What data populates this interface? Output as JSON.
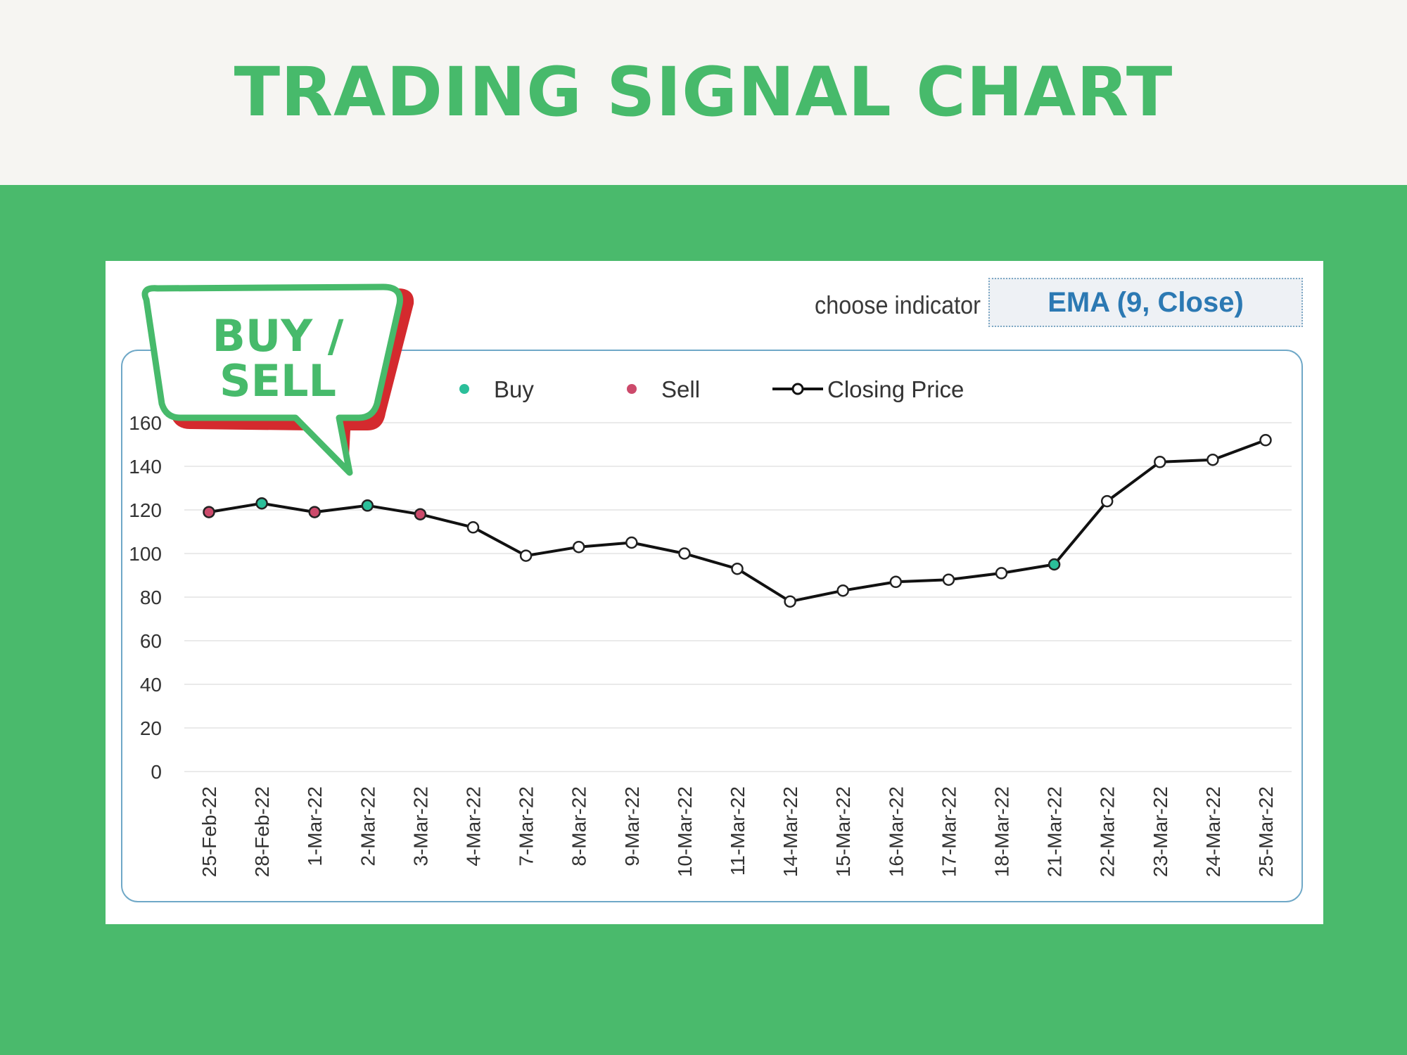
{
  "title": "TRADING SIGNAL CHART",
  "indicator": {
    "label": "choose indicator",
    "selected": "EMA (9, Close)"
  },
  "callout": {
    "line1": "BUY /",
    "line2": "SELL"
  },
  "colors": {
    "background": "#4aba6c",
    "title": "#47ba6b",
    "buy": "#2bbf9a",
    "sell": "#cc4a6b",
    "line": "#111111",
    "callout_shadow": "#d42a2e"
  },
  "chart_data": {
    "type": "line",
    "categories": [
      "25-Feb-22",
      "28-Feb-22",
      "1-Mar-22",
      "2-Mar-22",
      "3-Mar-22",
      "4-Mar-22",
      "7-Mar-22",
      "8-Mar-22",
      "9-Mar-22",
      "10-Mar-22",
      "11-Mar-22",
      "14-Mar-22",
      "15-Mar-22",
      "16-Mar-22",
      "17-Mar-22",
      "18-Mar-22",
      "21-Mar-22",
      "22-Mar-22",
      "23-Mar-22",
      "24-Mar-22",
      "25-Mar-22"
    ],
    "series": [
      {
        "name": "Closing Price",
        "values": [
          119,
          123,
          119,
          122,
          118,
          112,
          99,
          103,
          105,
          100,
          93,
          78,
          83,
          87,
          88,
          91,
          95,
          124,
          142,
          143,
          152
        ]
      }
    ],
    "signals": [
      "sell",
      "buy",
      "sell",
      "buy",
      "sell",
      null,
      null,
      null,
      null,
      null,
      null,
      null,
      null,
      null,
      null,
      null,
      "buy",
      null,
      null,
      null,
      null
    ],
    "legend": [
      "Buy",
      "Sell",
      "Closing Price"
    ],
    "legend_position": "top",
    "yticks": [
      0,
      20,
      40,
      60,
      80,
      100,
      120,
      140,
      160
    ],
    "ylim": [
      0,
      160
    ],
    "grid": true
  }
}
